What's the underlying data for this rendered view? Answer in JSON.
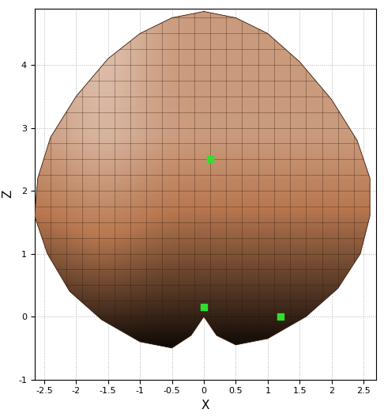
{
  "chart_data": {
    "type": "surface_projection",
    "xlabel": "X",
    "ylabel": "Z",
    "xlim": [
      -2.65,
      2.7
    ],
    "ylim": [
      -1,
      4.9
    ],
    "xticks": [
      -2.5,
      -2,
      -1.5,
      -1,
      -0.5,
      0,
      0.5,
      1,
      1.5,
      2,
      2.5
    ],
    "yticks": [
      -1,
      0,
      1,
      2,
      3,
      4
    ],
    "grid": true,
    "surface": {
      "color": "#b87850",
      "x": [
        0,
        0.5,
        1.0,
        1.5,
        2.0,
        2.4,
        2.6,
        2.6,
        2.45,
        2.1,
        1.6,
        1.0,
        0.5,
        0.2,
        0.0,
        -0.2,
        -0.5,
        -1.0,
        -1.6,
        -2.1,
        -2.45,
        -2.65,
        -2.6,
        -2.4,
        -2.0,
        -1.5,
        -1.0,
        -0.5
      ],
      "z": [
        4.85,
        4.75,
        4.5,
        4.05,
        3.45,
        2.8,
        2.2,
        1.6,
        1.0,
        0.45,
        0.0,
        -0.35,
        -0.45,
        -0.3,
        0.0,
        -0.3,
        -0.5,
        -0.4,
        -0.05,
        0.4,
        1.0,
        1.6,
        2.2,
        2.85,
        3.5,
        4.1,
        4.5,
        4.75
      ]
    },
    "points": {
      "color": "#2fe02f",
      "x": [
        0.1,
        0.0,
        1.2
      ],
      "z": [
        2.5,
        0.15,
        0.0
      ]
    }
  }
}
